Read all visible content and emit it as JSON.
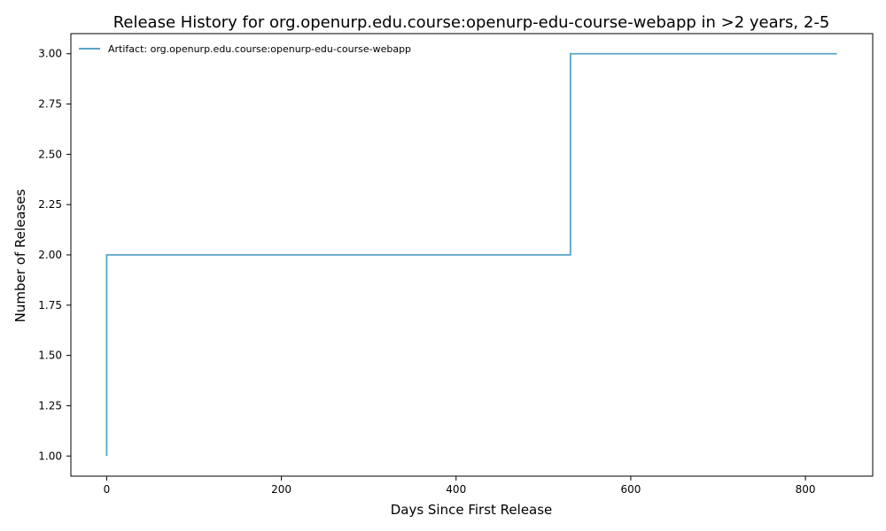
{
  "chart_data": {
    "type": "line",
    "step": true,
    "title": "Release History for org.openurp.edu.course:openurp-edu-course-webapp in >2 years, 2-5",
    "xlabel": "Days Since First Release",
    "ylabel": "Number of Releases",
    "xlim": [
      -41,
      877
    ],
    "ylim": [
      0.9,
      3.1
    ],
    "xticks": [
      0,
      200,
      400,
      600,
      800
    ],
    "xtick_labels": [
      "0",
      "200",
      "400",
      "600",
      "800"
    ],
    "yticks": [
      1.0,
      1.25,
      1.5,
      1.75,
      2.0,
      2.25,
      2.5,
      2.75,
      3.0
    ],
    "ytick_labels": [
      "1.00",
      "1.25",
      "1.50",
      "1.75",
      "2.00",
      "2.25",
      "2.50",
      "2.75",
      "3.00"
    ],
    "grid": false,
    "legend_position": "top-left",
    "series": [
      {
        "name": "Artifact: org.openurp.edu.course:openurp-edu-course-webapp",
        "color": "#5ba3c9",
        "x": [
          0,
          0,
          531,
          836
        ],
        "y": [
          1,
          2,
          3,
          3
        ]
      }
    ]
  }
}
